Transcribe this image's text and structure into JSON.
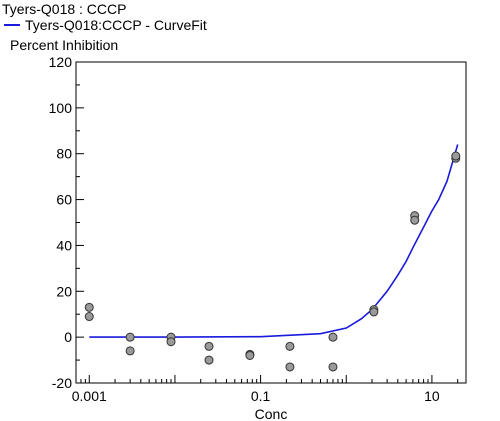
{
  "chart_data": {
    "type": "scatter",
    "title": "Tyers-Q018  : CCCP",
    "ylabel": "Percent Inhibition",
    "xlabel": "Conc",
    "x_scale": "log",
    "xlim": [
      0.0007,
      25
    ],
    "ylim": [
      -20,
      120
    ],
    "y_ticks": [
      -20,
      0,
      20,
      40,
      60,
      80,
      100,
      120
    ],
    "x_ticks": [
      {
        "value": 0.001,
        "label": "0.001"
      },
      {
        "value": 0.1,
        "label": "0.1"
      },
      {
        "value": 10,
        "label": "10"
      }
    ],
    "grid": false,
    "legend": "top-left",
    "series": [
      {
        "name": "Tyers-Q018:CCCP - CurveFit",
        "kind": "line",
        "color": "#1a1adc",
        "x": [
          0.001,
          0.01,
          0.1,
          0.5,
          1,
          1.5,
          2,
          3,
          4,
          5,
          6,
          8,
          10,
          12,
          15,
          20
        ],
        "y": [
          0,
          0,
          0.2,
          1.5,
          4,
          8,
          12,
          20,
          27,
          33,
          39,
          48,
          55,
          60,
          68,
          84
        ]
      },
      {
        "kind": "points",
        "color": "#9a9a9a",
        "x": [
          0.001,
          0.001,
          0.003,
          0.003,
          0.009,
          0.009,
          0.025,
          0.025,
          0.075,
          0.075,
          0.22,
          0.22,
          0.7,
          0.7,
          2.1,
          2.1,
          6.3,
          6.3,
          19,
          19
        ],
        "y": [
          13,
          9,
          0,
          -6,
          0,
          -2,
          -4,
          -10,
          -7.5,
          -8,
          -4,
          -13,
          0,
          -13,
          12,
          11,
          53,
          51,
          78,
          79
        ]
      }
    ]
  }
}
